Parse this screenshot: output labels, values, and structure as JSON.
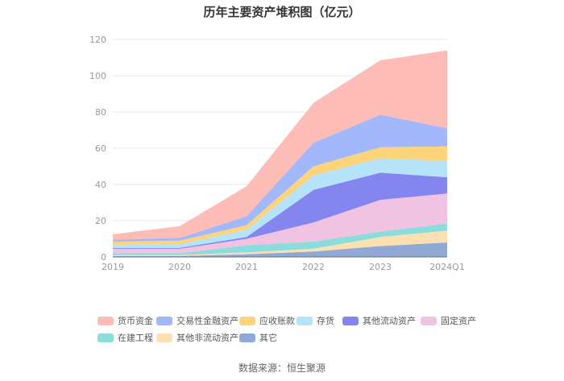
{
  "chart_data": {
    "type": "area",
    "stacked": true,
    "title": "历年主要资产堆积图（亿元）",
    "categories": [
      "2019",
      "2020",
      "2021",
      "2022",
      "2023",
      "2024Q1"
    ],
    "ylim": [
      0,
      120
    ],
    "yticks": [
      0,
      20,
      40,
      60,
      80,
      100,
      120
    ],
    "grid": true,
    "legend_position": "bottom",
    "series": [
      {
        "name": "其它",
        "color": "#8fa8d4",
        "values": [
          0.5,
          0.5,
          1.5,
          3.0,
          6.0,
          8.0
        ]
      },
      {
        "name": "其他非流动资产",
        "color": "#fde0b2",
        "values": [
          0.5,
          0.5,
          1.0,
          1.5,
          5.0,
          6.5
        ]
      },
      {
        "name": "在建工程",
        "color": "#8ddcdc",
        "values": [
          1.0,
          1.0,
          4.0,
          4.0,
          3.0,
          4.0
        ]
      },
      {
        "name": "固定资产",
        "color": "#f0c3e2",
        "values": [
          2.5,
          2.5,
          3.5,
          10.5,
          17.5,
          16.5
        ]
      },
      {
        "name": "其他流动资产",
        "color": "#8585ef",
        "values": [
          0.5,
          0.5,
          1.0,
          18.0,
          15.0,
          9.0
        ]
      },
      {
        "name": "存货",
        "color": "#b5e3fa",
        "values": [
          1.5,
          2.0,
          4.0,
          8.0,
          8.0,
          9.0
        ]
      },
      {
        "name": "应收账款",
        "color": "#fdd47a",
        "values": [
          2.0,
          2.0,
          2.5,
          5.0,
          6.0,
          8.0
        ]
      },
      {
        "name": "交易性金融资产",
        "color": "#a3b8fa",
        "values": [
          1.0,
          1.5,
          5.0,
          13.0,
          18.0,
          10.0
        ]
      },
      {
        "name": "货币资金",
        "color": "#fdbcb6",
        "values": [
          3.0,
          6.5,
          16.5,
          22.0,
          30.0,
          43.0
        ]
      }
    ],
    "legend_order": [
      "货币资金",
      "交易性金融资产",
      "应收账款",
      "存货",
      "其他流动资产",
      "固定资产",
      "在建工程",
      "其他非流动资产",
      "其它"
    ]
  },
  "source_note": "数据来源：恒生聚源"
}
